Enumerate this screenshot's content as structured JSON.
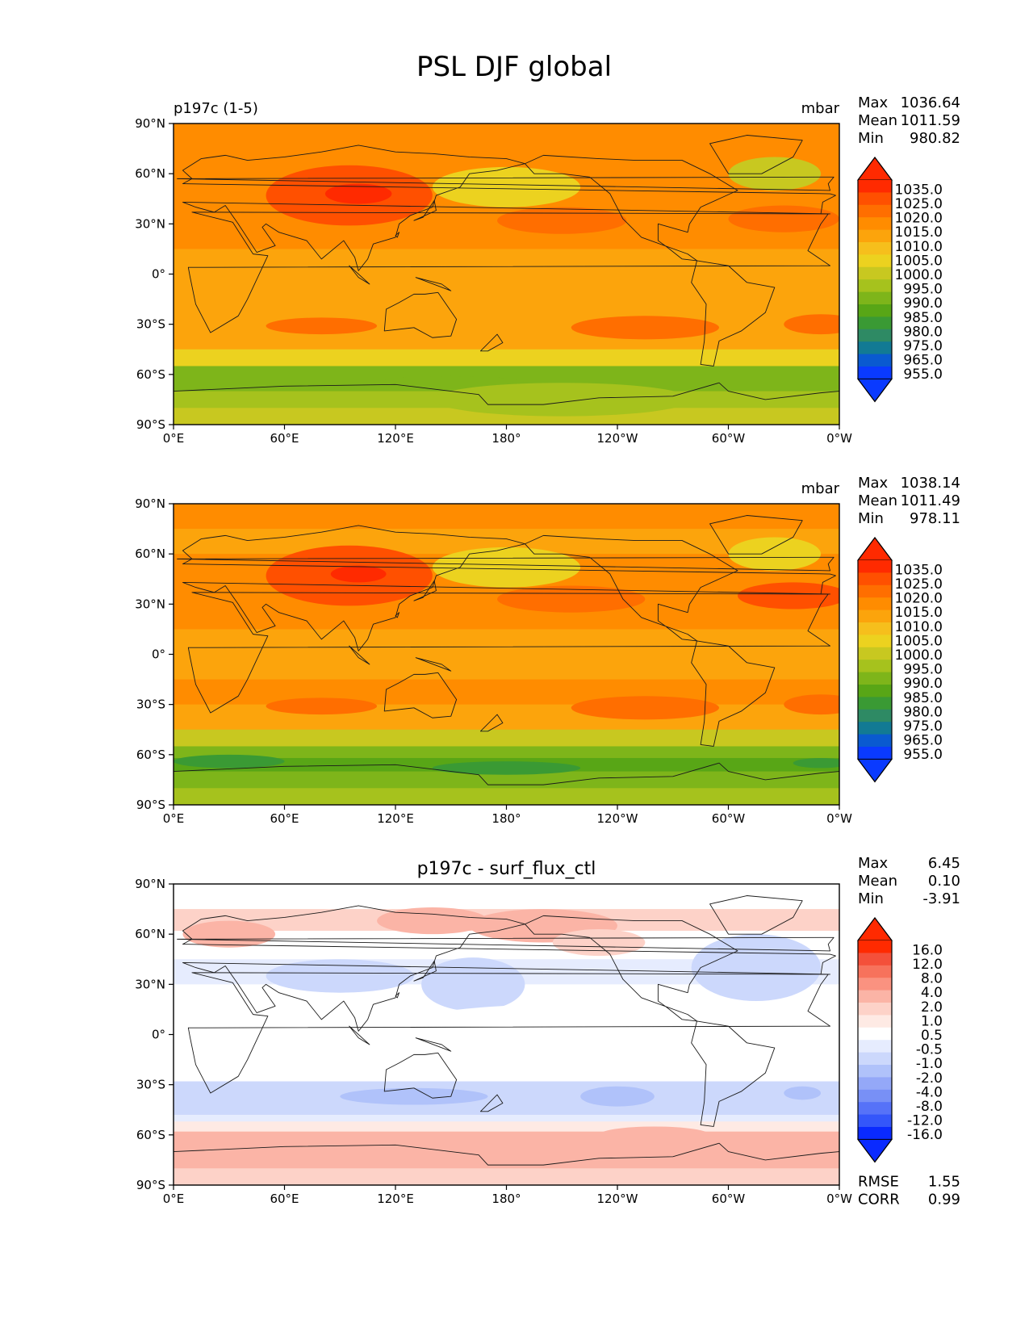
{
  "figure": {
    "title": "PSL DJF global"
  },
  "chart_data": [
    {
      "type": "heatmap",
      "name": "test",
      "left_title": "p197c (1-5)",
      "center_title": "",
      "units": "mbar",
      "stats": [
        {
          "label": "Max",
          "value": "1036.64"
        },
        {
          "label": "Mean",
          "value": "1011.59"
        },
        {
          "label": "Min",
          "value": "980.82"
        }
      ],
      "x_ticks": [
        "0°E",
        "60°E",
        "120°E",
        "180°",
        "120°W",
        "60°W",
        "0°W"
      ],
      "y_ticks": [
        "90°N",
        "60°N",
        "30°N",
        "0°",
        "30°S",
        "60°S",
        "90°S"
      ],
      "xlim": [
        0,
        360
      ],
      "ylim": [
        -90,
        90
      ],
      "colorbar": {
        "labels": [
          "1035.0",
          "1025.0",
          "1020.0",
          "1015.0",
          "1010.0",
          "1005.0",
          "1000.0",
          "995.0",
          "990.0",
          "985.0",
          "980.0",
          "975.0",
          "965.0",
          "955.0"
        ],
        "colors": [
          "#ff2a00",
          "#ff5000",
          "#ff6e00",
          "#ff8c00",
          "#fca40c",
          "#f6bf1c",
          "#ecd21f",
          "#c8c820",
          "#a6c21d",
          "#7eb51a",
          "#58a616",
          "#3a9a34",
          "#2e8a64",
          "#127a94",
          "#0a5ad0",
          "#0a3aff"
        ],
        "extend_top_color": "#ff2a00",
        "extend_bottom_color": "#0a3aff"
      },
      "field_bands": [
        {
          "lat": 90,
          "value": 1016
        },
        {
          "lat": 75,
          "value": 1018
        },
        {
          "lat": 60,
          "value": 1014
        },
        {
          "lat": 45,
          "value": 1018
        },
        {
          "lat": 30,
          "value": 1019
        },
        {
          "lat": 15,
          "value": 1013
        },
        {
          "lat": 0,
          "value": 1010
        },
        {
          "lat": -15,
          "value": 1012
        },
        {
          "lat": -30,
          "value": 1017
        },
        {
          "lat": -45,
          "value": 1010
        },
        {
          "lat": -55,
          "value": 993
        },
        {
          "lat": -62,
          "value": 984
        },
        {
          "lat": -70,
          "value": 988
        },
        {
          "lat": -80,
          "value": 996
        },
        {
          "lat": -90,
          "value": 1000
        }
      ],
      "features": [
        {
          "lon": 95,
          "lat": 47,
          "rx": 45,
          "ry": 18,
          "value": 1030
        },
        {
          "lon": 100,
          "lat": 48,
          "rx": 18,
          "ry": 6,
          "value": 1036
        },
        {
          "lon": 180,
          "lat": 52,
          "rx": 40,
          "ry": 12,
          "value": 1003
        },
        {
          "lon": 325,
          "lat": 60,
          "rx": 25,
          "ry": 10,
          "value": 998
        },
        {
          "lon": 210,
          "lat": 32,
          "rx": 35,
          "ry": 8,
          "value": 1022
        },
        {
          "lon": 330,
          "lat": 33,
          "rx": 30,
          "ry": 8,
          "value": 1024
        },
        {
          "lon": 80,
          "lat": -31,
          "rx": 30,
          "ry": 5,
          "value": 1021
        },
        {
          "lon": 255,
          "lat": -32,
          "rx": 40,
          "ry": 7,
          "value": 1022
        },
        {
          "lon": 350,
          "lat": -30,
          "rx": 20,
          "ry": 6,
          "value": 1022
        },
        {
          "lon": 150,
          "lat": -65,
          "rx": 40,
          "ry": 4,
          "value": 986
        },
        {
          "lon": 210,
          "lat": -75,
          "rx": 70,
          "ry": 10,
          "value": 990
        }
      ]
    },
    {
      "type": "heatmap",
      "name": "reference",
      "left_title": "",
      "center_title": "",
      "units": "mbar",
      "stats": [
        {
          "label": "Max",
          "value": "1038.14"
        },
        {
          "label": "Mean",
          "value": "1011.49"
        },
        {
          "label": "Min",
          "value": "978.11"
        }
      ],
      "x_ticks": [
        "0°E",
        "60°E",
        "120°E",
        "180°",
        "120°W",
        "60°W",
        "0°W"
      ],
      "y_ticks": [
        "90°N",
        "60°N",
        "30°N",
        "0°",
        "30°S",
        "60°S",
        "90°S"
      ],
      "xlim": [
        0,
        360
      ],
      "ylim": [
        -90,
        90
      ],
      "colorbar": {
        "labels": [
          "1035.0",
          "1025.0",
          "1020.0",
          "1015.0",
          "1010.0",
          "1005.0",
          "1000.0",
          "995.0",
          "990.0",
          "985.0",
          "980.0",
          "975.0",
          "965.0",
          "955.0"
        ],
        "colors": [
          "#ff2a00",
          "#ff5000",
          "#ff6e00",
          "#ff8c00",
          "#fca40c",
          "#f6bf1c",
          "#ecd21f",
          "#c8c820",
          "#a6c21d",
          "#7eb51a",
          "#58a616",
          "#3a9a34",
          "#2e8a64",
          "#127a94",
          "#0a5ad0",
          "#0a3aff"
        ],
        "extend_top_color": "#ff2a00",
        "extend_bottom_color": "#0a3aff"
      },
      "field_bands": [
        {
          "lat": 90,
          "value": 1015
        },
        {
          "lat": 75,
          "value": 1016
        },
        {
          "lat": 60,
          "value": 1013
        },
        {
          "lat": 45,
          "value": 1019
        },
        {
          "lat": 30,
          "value": 1020
        },
        {
          "lat": 15,
          "value": 1013
        },
        {
          "lat": 0,
          "value": 1010
        },
        {
          "lat": -15,
          "value": 1012
        },
        {
          "lat": -30,
          "value": 1018
        },
        {
          "lat": -45,
          "value": 1008
        },
        {
          "lat": -55,
          "value": 990
        },
        {
          "lat": -62,
          "value": 982
        },
        {
          "lat": -70,
          "value": 985
        },
        {
          "lat": -80,
          "value": 992
        },
        {
          "lat": -90,
          "value": 995
        }
      ],
      "features": [
        {
          "lon": 95,
          "lat": 47,
          "rx": 45,
          "ry": 18,
          "value": 1031
        },
        {
          "lon": 100,
          "lat": 48,
          "rx": 15,
          "ry": 5,
          "value": 1037
        },
        {
          "lon": 180,
          "lat": 52,
          "rx": 40,
          "ry": 12,
          "value": 1004
        },
        {
          "lon": 325,
          "lat": 60,
          "rx": 25,
          "ry": 10,
          "value": 1001
        },
        {
          "lon": 215,
          "lat": 33,
          "rx": 40,
          "ry": 8,
          "value": 1021
        },
        {
          "lon": 335,
          "lat": 35,
          "rx": 30,
          "ry": 8,
          "value": 1025
        },
        {
          "lon": 80,
          "lat": -31,
          "rx": 30,
          "ry": 5,
          "value": 1022
        },
        {
          "lon": 255,
          "lat": -32,
          "rx": 40,
          "ry": 7,
          "value": 1022
        },
        {
          "lon": 350,
          "lat": -30,
          "rx": 20,
          "ry": 6,
          "value": 1022
        },
        {
          "lon": 30,
          "lat": -64,
          "rx": 30,
          "ry": 4,
          "value": 977
        },
        {
          "lon": 180,
          "lat": -68,
          "rx": 40,
          "ry": 4,
          "value": 978
        },
        {
          "lon": 350,
          "lat": -65,
          "rx": 15,
          "ry": 3,
          "value": 976
        }
      ]
    },
    {
      "type": "heatmap",
      "name": "difference",
      "left_title": "",
      "center_title": "p197c - surf_flux_ctl",
      "units": "",
      "stats": [
        {
          "label": "Max",
          "value": "6.45"
        },
        {
          "label": "Mean",
          "value": "0.10"
        },
        {
          "label": "Min",
          "value": "-3.91"
        }
      ],
      "metrics": [
        {
          "label": "RMSE",
          "value": "1.55"
        },
        {
          "label": "CORR",
          "value": "0.99"
        }
      ],
      "x_ticks": [
        "0°E",
        "60°E",
        "120°E",
        "180°",
        "120°W",
        "60°W",
        "0°W"
      ],
      "y_ticks": [
        "90°N",
        "60°N",
        "30°N",
        "0°",
        "30°S",
        "60°S",
        "90°S"
      ],
      "xlim": [
        0,
        360
      ],
      "ylim": [
        -90,
        90
      ],
      "colorbar": {
        "labels": [
          "16.0",
          "12.0",
          "8.0",
          "4.0",
          "2.0",
          "1.0",
          "0.5",
          "-0.5",
          "-1.0",
          "-2.0",
          "-4.0",
          "-8.0",
          "-12.0",
          "-16.0"
        ],
        "colors": [
          "#ff2a00",
          "#f4503a",
          "#f7725c",
          "#fa9280",
          "#fbb4a6",
          "#fdd2c8",
          "#feeae4",
          "#ffffff",
          "#e6ecfe",
          "#ccd8fc",
          "#b0c2fa",
          "#94a8f8",
          "#7890f6",
          "#5672f8",
          "#3456fa",
          "#0a2aff"
        ],
        "extend_top_color": "#ff2a00",
        "extend_bottom_color": "#0a2aff"
      },
      "field_bands": [
        {
          "lat": 90,
          "value": 0
        },
        {
          "lat": 75,
          "value": 0.8
        },
        {
          "lat": 62,
          "value": 1.5
        },
        {
          "lat": 45,
          "value": -0.8
        },
        {
          "lat": 30,
          "value": -0.6
        },
        {
          "lat": 15,
          "value": 0
        },
        {
          "lat": 0,
          "value": 0
        },
        {
          "lat": -15,
          "value": 0
        },
        {
          "lat": -28,
          "value": -0.8
        },
        {
          "lat": -40,
          "value": -1.5
        },
        {
          "lat": -48,
          "value": -1.2
        },
        {
          "lat": -52,
          "value": 0
        },
        {
          "lat": -58,
          "value": 1.5
        },
        {
          "lat": -70,
          "value": 2.5
        },
        {
          "lat": -80,
          "value": 2.0
        },
        {
          "lat": -90,
          "value": 1.8
        }
      ],
      "features": [
        {
          "lon": 200,
          "lat": 65,
          "rx": 40,
          "ry": 10,
          "value": 3.0
        },
        {
          "lon": 140,
          "lat": 68,
          "rx": 30,
          "ry": 8,
          "value": 2.2
        },
        {
          "lon": 30,
          "lat": 60,
          "rx": 25,
          "ry": 8,
          "value": 2.5
        },
        {
          "lon": 230,
          "lat": 55,
          "rx": 25,
          "ry": 8,
          "value": 1.5
        },
        {
          "lon": 162,
          "lat": 30,
          "rx": 18,
          "ry": 10,
          "value": -3.0
        },
        {
          "lon": 162,
          "lat": 30,
          "rx": 28,
          "ry": 16,
          "value": -1.5
        },
        {
          "lon": 315,
          "lat": 35,
          "rx": 22,
          "ry": 12,
          "value": -2.2
        },
        {
          "lon": 315,
          "lat": 40,
          "rx": 35,
          "ry": 20,
          "value": -1.2
        },
        {
          "lon": 90,
          "lat": 35,
          "rx": 40,
          "ry": 10,
          "value": -1.3
        },
        {
          "lon": 210,
          "lat": 0,
          "rx": 100,
          "ry": 18,
          "value": 0
        },
        {
          "lon": 130,
          "lat": -37,
          "rx": 40,
          "ry": 5,
          "value": -2.5
        },
        {
          "lon": 240,
          "lat": -37,
          "rx": 20,
          "ry": 6,
          "value": -2.8
        },
        {
          "lon": 340,
          "lat": -35,
          "rx": 10,
          "ry": 4,
          "value": -2.3
        },
        {
          "lon": 160,
          "lat": -65,
          "rx": 40,
          "ry": 5,
          "value": 3.5
        },
        {
          "lon": 260,
          "lat": -60,
          "rx": 30,
          "ry": 5,
          "value": 2.5
        }
      ]
    }
  ]
}
